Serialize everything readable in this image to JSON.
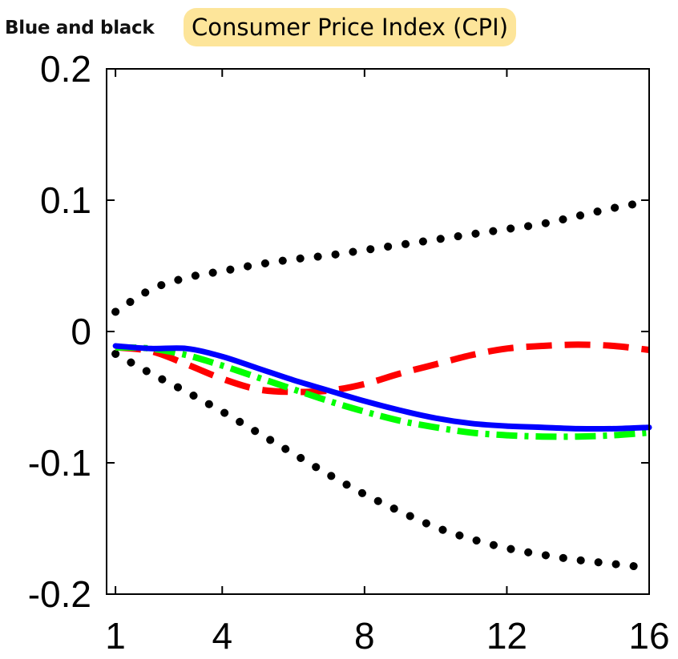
{
  "caption": "Blue and black",
  "chart_data": {
    "type": "line",
    "title": "Consumer Price Index (CPI)",
    "xlabel": "",
    "ylabel": "",
    "xlim": [
      0.75,
      16
    ],
    "ylim": [
      -0.2,
      0.2
    ],
    "xticks": [
      1,
      4,
      8,
      12,
      16
    ],
    "yticks": [
      -0.2,
      -0.1,
      0,
      0.1,
      0.2
    ],
    "ytick_labels": [
      "-0.2",
      "-0.1",
      "0",
      "0.1",
      "0.2"
    ],
    "grid": false,
    "x": [
      1,
      2,
      3,
      4,
      5,
      6,
      7,
      8,
      9,
      10,
      11,
      12,
      13,
      14,
      15,
      16
    ],
    "series": [
      {
        "style": "dotted",
        "color": "#000000",
        "values": [
          0.015,
          0.032,
          0.041,
          0.046,
          0.051,
          0.055,
          0.058,
          0.062,
          0.066,
          0.07,
          0.074,
          0.078,
          0.082,
          0.088,
          0.094,
          0.099
        ]
      },
      {
        "style": "dotted",
        "color": "#000000",
        "values": [
          -0.017,
          -0.032,
          -0.046,
          -0.061,
          -0.077,
          -0.093,
          -0.109,
          -0.124,
          -0.137,
          -0.149,
          -0.158,
          -0.165,
          -0.17,
          -0.174,
          -0.177,
          -0.18
        ]
      },
      {
        "style": "dashed",
        "color": "#ff0000",
        "values": [
          -0.012,
          -0.015,
          -0.025,
          -0.036,
          -0.044,
          -0.046,
          -0.045,
          -0.04,
          -0.032,
          -0.025,
          -0.018,
          -0.013,
          -0.011,
          -0.01,
          -0.011,
          -0.014
        ]
      },
      {
        "style": "dashdot",
        "color": "#00ff00",
        "values": [
          -0.012,
          -0.013,
          -0.018,
          -0.026,
          -0.035,
          -0.044,
          -0.053,
          -0.061,
          -0.068,
          -0.073,
          -0.077,
          -0.079,
          -0.08,
          -0.08,
          -0.079,
          -0.077
        ]
      },
      {
        "style": "solid",
        "color": "#0000ff",
        "values": [
          -0.011,
          -0.013,
          -0.013,
          -0.019,
          -0.028,
          -0.037,
          -0.045,
          -0.053,
          -0.06,
          -0.066,
          -0.07,
          -0.072,
          -0.073,
          -0.074,
          -0.074,
          -0.073
        ]
      }
    ]
  }
}
